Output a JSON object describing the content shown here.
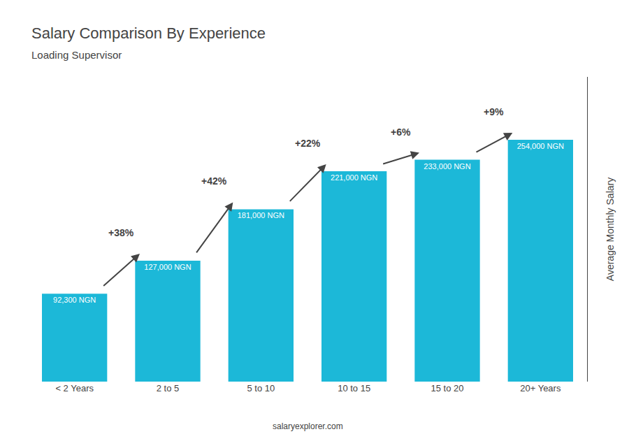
{
  "chart_data": {
    "type": "bar",
    "title": "Salary Comparison By Experience",
    "subtitle": "Loading Supervisor",
    "categories": [
      "< 2 Years",
      "2 to 5",
      "5 to 10",
      "10 to 15",
      "15 to 20",
      "20+ Years"
    ],
    "values": [
      92300,
      127000,
      181000,
      221000,
      233000,
      254000
    ],
    "value_labels": [
      "92,300 NGN",
      "127,000 NGN",
      "181,000 NGN",
      "221,000 NGN",
      "233,000 NGN",
      "254,000 NGN"
    ],
    "data_labels": true,
    "color": "#1cb8d8",
    "ylabel": "Average Monthly Salary",
    "ylim": [
      0,
      320000
    ],
    "grid": false,
    "tick_labels": "x",
    "annotations": [
      {
        "text": "+38%",
        "from": "< 2 Years",
        "to": "2 to 5"
      },
      {
        "text": "+42%",
        "from": "2 to 5",
        "to": "5 to 10"
      },
      {
        "text": "+22%",
        "from": "5 to 10",
        "to": "10 to 15"
      },
      {
        "text": "+6%",
        "from": "10 to 15",
        "to": "15 to 20"
      },
      {
        "text": "+9%",
        "from": "15 to 20",
        "to": "20+ Years"
      },
      {
        "text": "salaryexplorer.com"
      }
    ]
  }
}
